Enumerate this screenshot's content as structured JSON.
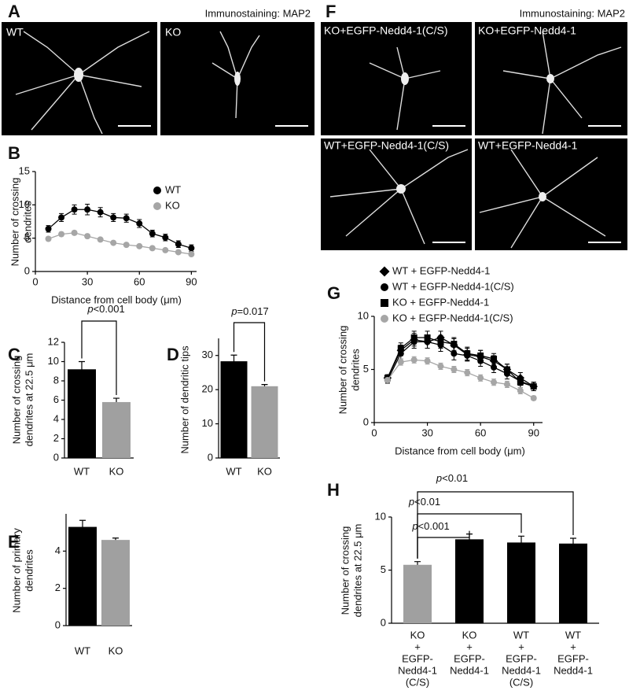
{
  "figure": {
    "panels": [
      "A",
      "F"
    ],
    "stain_labels": [
      "Immunostaining: MAP2",
      "Immunostaining: MAP2"
    ],
    "image_labels": [
      "WT",
      "KO",
      "KO+EGFP-Nedd4-1(C/S)",
      "KO+EGFP-Nedd4-1",
      "WT+EGFP-Nedd4-1(C/S)",
      "WT+EGFP-Nedd4-1"
    ]
  },
  "chart_data": [
    {
      "type": "line",
      "panel": "B",
      "y_label": [
        "Number of crossing",
        "dendrites"
      ],
      "x_label": "Distance from cell body (μm)",
      "x": [
        7.5,
        15,
        22.5,
        30,
        37.5,
        45,
        52.5,
        60,
        67.5,
        75,
        82.5,
        90
      ],
      "xlim": [
        0,
        93
      ],
      "xticks": [
        0,
        30,
        60,
        90
      ],
      "ylim": [
        0,
        15
      ],
      "yticks": [
        0,
        5,
        10,
        15
      ],
      "series": [
        {
          "name": "WT",
          "color": "#000000",
          "marker": "circle",
          "values": [
            6.4,
            8.1,
            9.3,
            9.3,
            8.9,
            8.1,
            8.0,
            7.2,
            5.7,
            5.1,
            4.1,
            3.5
          ],
          "errors": [
            0.5,
            0.6,
            0.7,
            0.8,
            0.7,
            0.6,
            0.6,
            0.6,
            0.5,
            0.5,
            0.5,
            0.5
          ]
        },
        {
          "name": "KO",
          "color": "#a6a6a6",
          "marker": "circle",
          "values": [
            4.9,
            5.6,
            5.8,
            5.3,
            4.8,
            4.3,
            4.0,
            3.8,
            3.5,
            3.2,
            2.9,
            2.6
          ],
          "errors": [
            0.3,
            0.3,
            0.3,
            0.3,
            0.2,
            0.2,
            0.2,
            0.2,
            0.2,
            0.2,
            0.2,
            0.2
          ]
        }
      ]
    },
    {
      "type": "bar",
      "panel": "C",
      "y_label": [
        "Number of crossing",
        "dendrites at 22.5 μm"
      ],
      "categories": [
        [
          "WT"
        ],
        [
          "KO"
        ]
      ],
      "values": [
        9.2,
        5.8
      ],
      "errors": [
        0.8,
        0.4
      ],
      "colors": [
        "#000000",
        "#a0a0a0"
      ],
      "ylim": [
        0,
        12
      ],
      "yticks": [
        0,
        2,
        4,
        6,
        8,
        10,
        12
      ],
      "annotations": [
        "p<0.001"
      ]
    },
    {
      "type": "bar",
      "panel": "D",
      "y_label": [
        "Number of dendritic tips"
      ],
      "categories": [
        [
          "WT"
        ],
        [
          "KO"
        ]
      ],
      "values": [
        28.3,
        21.0
      ],
      "errors": [
        1.8,
        0.5
      ],
      "colors": [
        "#000000",
        "#a0a0a0"
      ],
      "ylim": [
        0,
        35
      ],
      "yticks": [
        0,
        10,
        20,
        30
      ],
      "annotations": [
        "p=0.017"
      ]
    },
    {
      "type": "bar",
      "panel": "E",
      "y_label": [
        "Number of primary",
        "dendrites"
      ],
      "categories": [
        [
          "WT"
        ],
        [
          "KO"
        ]
      ],
      "values": [
        5.3,
        4.6
      ],
      "errors": [
        0.35,
        0.1
      ],
      "colors": [
        "#000000",
        "#a0a0a0"
      ],
      "ylim": [
        0,
        6
      ],
      "yticks": [
        0,
        2,
        4
      ],
      "annotations": []
    },
    {
      "type": "line",
      "panel": "G",
      "y_label": [
        "Number of crossing",
        "dendrites"
      ],
      "x_label": "Distance from cell body (μm)",
      "x": [
        7.5,
        15,
        22.5,
        30,
        37.5,
        45,
        52.5,
        60,
        67.5,
        75,
        82.5,
        90
      ],
      "xlim": [
        0,
        95
      ],
      "xticks": [
        0,
        30,
        60,
        90
      ],
      "ylim": [
        0,
        10
      ],
      "yticks": [
        0,
        5,
        10
      ],
      "series": [
        {
          "name": "WT + EGFP-Nedd4-1",
          "color": "#000000",
          "marker": "diamond",
          "values": [
            4.2,
            6.8,
            7.8,
            7.6,
            8.0,
            7.3,
            6.4,
            6.2,
            5.8,
            5.0,
            4.2,
            3.4
          ],
          "errors": [
            0.3,
            0.5,
            0.6,
            0.6,
            0.6,
            0.6,
            0.6,
            0.6,
            0.5,
            0.5,
            0.5,
            0.4
          ]
        },
        {
          "name": "WT + EGFP-Nedd4-1(C/S)",
          "color": "#000000",
          "marker": "circle",
          "values": [
            4.0,
            6.5,
            7.6,
            7.6,
            7.3,
            6.5,
            6.3,
            5.8,
            5.2,
            4.6,
            3.9,
            3.4
          ],
          "errors": [
            0.3,
            0.5,
            0.6,
            0.6,
            0.6,
            0.6,
            0.5,
            0.5,
            0.5,
            0.5,
            0.4,
            0.4
          ]
        },
        {
          "name": "KO + EGFP-Nedd4-1",
          "color": "#000000",
          "marker": "square",
          "values": [
            4.2,
            7.0,
            8.0,
            8.0,
            7.6,
            7.4,
            6.5,
            6.3,
            6.0,
            5.0,
            3.8,
            3.4
          ],
          "errors": [
            0.3,
            0.5,
            0.6,
            0.6,
            0.6,
            0.6,
            0.6,
            0.5,
            0.5,
            0.5,
            0.5,
            0.4
          ]
        },
        {
          "name": "KO + EGFP-Nedd4-1(C/S)",
          "color": "#a6a6a6",
          "marker": "circle",
          "values": [
            4.0,
            5.7,
            5.9,
            5.8,
            5.3,
            5.0,
            4.7,
            4.2,
            3.8,
            3.6,
            3.0,
            2.3
          ],
          "errors": [
            0.2,
            0.3,
            0.3,
            0.3,
            0.3,
            0.3,
            0.3,
            0.3,
            0.3,
            0.3,
            0.3,
            0.2
          ]
        }
      ]
    },
    {
      "type": "bar",
      "panel": "H",
      "y_label": [
        "Number of crossing",
        "dendrites at 22.5 μm"
      ],
      "categories": [
        [
          "KO",
          "+",
          "EGFP-",
          "Nedd4-1",
          "(C/S)"
        ],
        [
          "KO",
          "+",
          "EGFP-",
          "Nedd4-1"
        ],
        [
          "WT",
          "+",
          "EGFP-",
          "Nedd4-1",
          "(C/S)"
        ],
        [
          "WT",
          "+",
          "EGFP-",
          "Nedd4-1"
        ]
      ],
      "values": [
        5.5,
        7.9,
        7.6,
        7.5
      ],
      "errors": [
        0.3,
        0.5,
        0.6,
        0.5
      ],
      "colors": [
        "#a0a0a0",
        "#000000",
        "#000000",
        "#000000"
      ],
      "ylim": [
        0,
        10
      ],
      "yticks": [
        0,
        5,
        10
      ],
      "annotations": [
        "p<0.001",
        "p<0.01",
        "p<0.01"
      ]
    }
  ]
}
